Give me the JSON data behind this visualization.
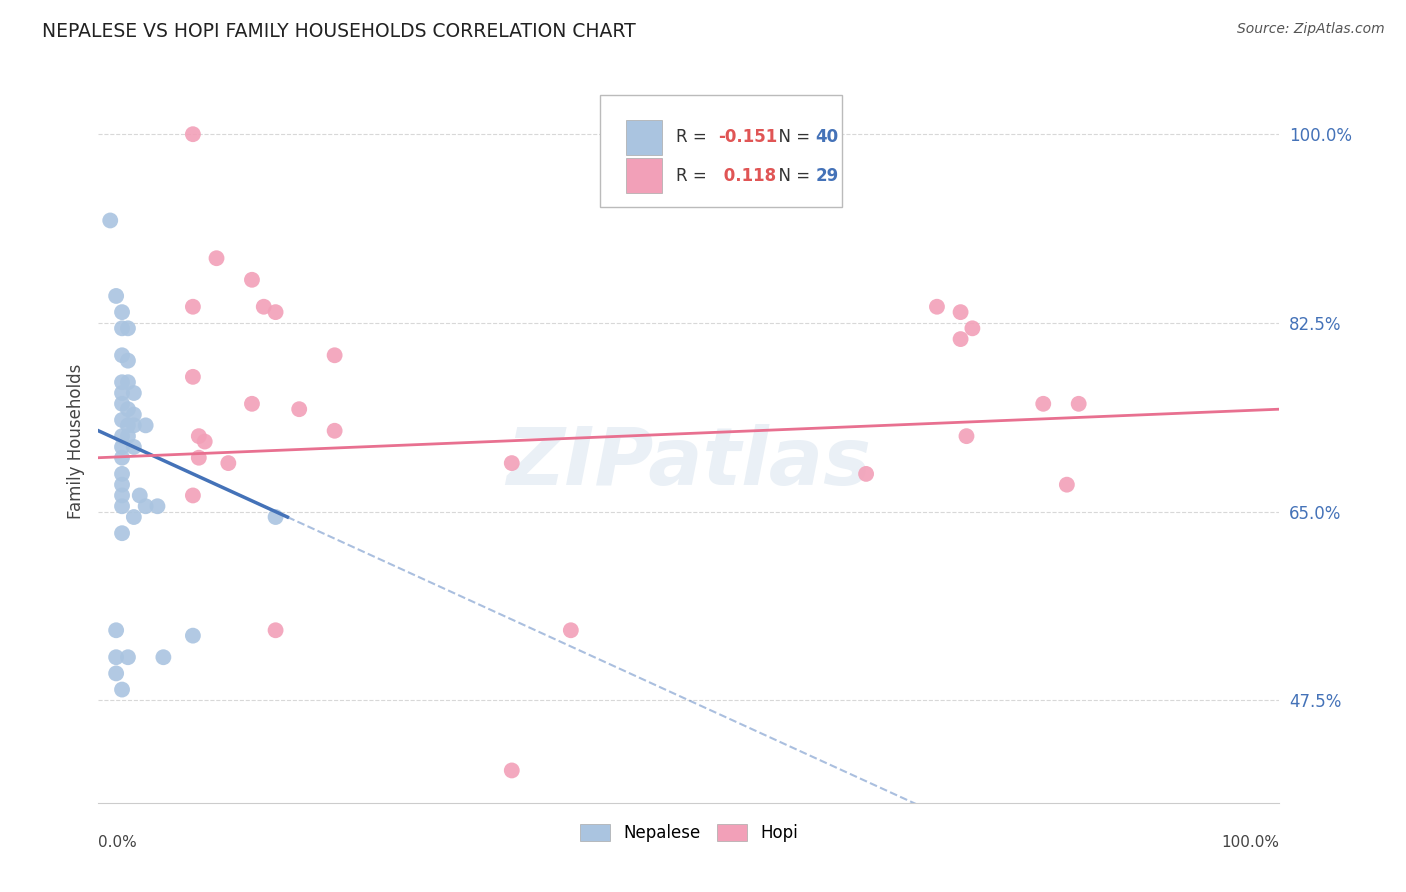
{
  "title": "NEPALESE VS HOPI FAMILY HOUSEHOLDS CORRELATION CHART",
  "source": "Source: ZipAtlas.com",
  "ylabel": "Family Households",
  "xlim": [
    0.0,
    100.0
  ],
  "ylim": [
    38.0,
    105.0
  ],
  "yticks": [
    47.5,
    65.0,
    82.5,
    100.0
  ],
  "ytick_labels": [
    "47.5%",
    "65.0%",
    "82.5%",
    "100.0%"
  ],
  "xtick_positions": [
    0,
    20,
    40,
    60,
    80,
    100
  ],
  "nepalese_R": -0.151,
  "nepalese_N": 40,
  "hopi_R": 0.118,
  "hopi_N": 29,
  "nepalese_color": "#aac4e0",
  "hopi_color": "#f2a0b8",
  "nepalese_line_color": "#4472b8",
  "hopi_line_color": "#e87090",
  "nepalese_scatter": [
    [
      1.0,
      92.0
    ],
    [
      1.5,
      85.0
    ],
    [
      2.0,
      83.5
    ],
    [
      2.0,
      82.0
    ],
    [
      2.5,
      82.0
    ],
    [
      2.0,
      79.5
    ],
    [
      2.5,
      79.0
    ],
    [
      2.0,
      77.0
    ],
    [
      2.5,
      77.0
    ],
    [
      2.0,
      76.0
    ],
    [
      3.0,
      76.0
    ],
    [
      2.0,
      75.0
    ],
    [
      2.5,
      74.5
    ],
    [
      3.0,
      74.0
    ],
    [
      2.0,
      73.5
    ],
    [
      2.5,
      73.0
    ],
    [
      3.0,
      73.0
    ],
    [
      4.0,
      73.0
    ],
    [
      2.0,
      72.0
    ],
    [
      2.5,
      72.0
    ],
    [
      2.0,
      71.0
    ],
    [
      3.0,
      71.0
    ],
    [
      2.0,
      70.0
    ],
    [
      2.0,
      68.5
    ],
    [
      2.0,
      67.5
    ],
    [
      2.0,
      66.5
    ],
    [
      3.5,
      66.5
    ],
    [
      2.0,
      65.5
    ],
    [
      4.0,
      65.5
    ],
    [
      5.0,
      65.5
    ],
    [
      3.0,
      64.5
    ],
    [
      15.0,
      64.5
    ],
    [
      2.0,
      63.0
    ],
    [
      8.0,
      53.5
    ],
    [
      1.5,
      54.0
    ],
    [
      1.5,
      51.5
    ],
    [
      2.5,
      51.5
    ],
    [
      5.5,
      51.5
    ],
    [
      1.5,
      50.0
    ],
    [
      2.0,
      48.5
    ]
  ],
  "hopi_scatter": [
    [
      8.0,
      100.0
    ],
    [
      10.0,
      88.5
    ],
    [
      13.0,
      86.5
    ],
    [
      8.0,
      84.0
    ],
    [
      14.0,
      84.0
    ],
    [
      15.0,
      83.5
    ],
    [
      20.0,
      79.5
    ],
    [
      8.0,
      77.5
    ],
    [
      13.0,
      75.0
    ],
    [
      17.0,
      74.5
    ],
    [
      20.0,
      72.5
    ],
    [
      8.5,
      72.0
    ],
    [
      9.0,
      71.5
    ],
    [
      8.5,
      70.0
    ],
    [
      11.0,
      69.5
    ],
    [
      35.0,
      69.5
    ],
    [
      65.0,
      68.5
    ],
    [
      8.0,
      66.5
    ],
    [
      15.0,
      54.0
    ],
    [
      40.0,
      54.0
    ],
    [
      35.0,
      41.0
    ],
    [
      71.0,
      84.0
    ],
    [
      73.0,
      83.5
    ],
    [
      74.0,
      82.0
    ],
    [
      73.0,
      81.0
    ],
    [
      73.5,
      72.0
    ],
    [
      80.0,
      75.0
    ],
    [
      83.0,
      75.0
    ],
    [
      82.0,
      67.5
    ]
  ],
  "watermark": "ZIPatlas",
  "background_color": "#ffffff",
  "grid_color": "#d8d8d8",
  "nepalese_solid_xmax": 16.0,
  "nepalese_line_x0": 0.0,
  "nepalese_line_y0": 72.5,
  "nepalese_line_x1": 16.0,
  "nepalese_line_y1": 64.5,
  "hopi_line_x0": 0.0,
  "hopi_line_y0": 70.0,
  "hopi_line_x1": 100.0,
  "hopi_line_y1": 74.5
}
